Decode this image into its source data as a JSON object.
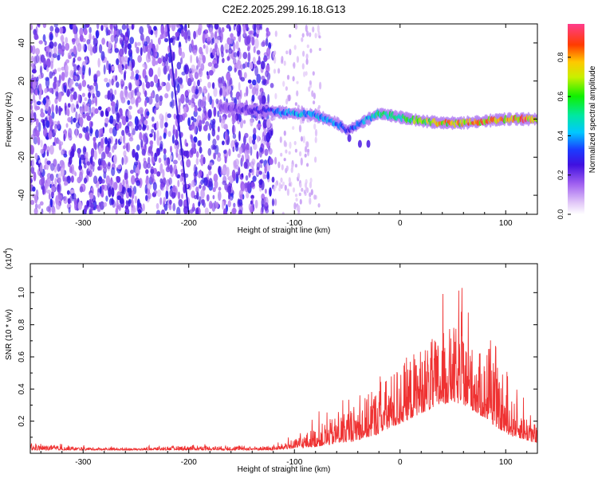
{
  "figure": {
    "title": "C2E2.2025.299.16.18.G13"
  },
  "chart_data": [
    {
      "type": "heatmap",
      "title": "C2E2.2025.299.16.18.G13",
      "xlabel": "Height of straight line (km)",
      "ylabel": "Frequency (Hz)",
      "xlim": [
        -350,
        130
      ],
      "ylim": [
        -50,
        50
      ],
      "xticks": [
        -300,
        -200,
        -100,
        0,
        100
      ],
      "yticks": [
        -40,
        -20,
        0,
        20,
        40
      ],
      "noise_region_x": [
        -350,
        -120
      ],
      "sparse_region_x": [
        -120,
        -75
      ],
      "streak_line": [
        [
          -220,
          50
        ],
        [
          -212,
          10
        ],
        [
          -200,
          -50
        ]
      ],
      "ridge": {
        "x": [
          -170,
          -140,
          -120,
          -100,
          -80,
          -60,
          -50,
          -40,
          -30,
          -20,
          0,
          20,
          40,
          60,
          80,
          100,
          130
        ],
        "freq": [
          6,
          5,
          4,
          3,
          2,
          -2,
          -6,
          -3,
          0,
          3,
          1,
          -1,
          -2,
          -2,
          -1,
          0,
          0
        ],
        "amplitude": [
          0.2,
          0.25,
          0.35,
          0.45,
          0.45,
          0.4,
          0.3,
          0.4,
          0.45,
          0.55,
          0.6,
          0.7,
          0.8,
          0.85,
          0.85,
          0.85,
          0.9
        ]
      },
      "colorbar": {
        "label": "Normalized spectral amplitude",
        "range": [
          0,
          0.97
        ],
        "ticks": [
          "0.0",
          "0.2",
          "0.4",
          "0.6",
          "0.8"
        ]
      }
    },
    {
      "type": "line",
      "xlabel": "Height of straight line (km)",
      "ylabel": "SNR (10 * v/v)",
      "yscale_label": "(x10",
      "yscale_exp": "4",
      "xlim": [
        -350,
        130
      ],
      "ylim": [
        0,
        1.18
      ],
      "xticks": [
        -300,
        -200,
        -100,
        0,
        100
      ],
      "yticks": [
        "0.2",
        "0.4",
        "0.6",
        "0.8",
        "1.0"
      ],
      "series": [
        {
          "name": "SNR",
          "color": "#ef3232",
          "envelope_x": [
            -350,
            -300,
            -250,
            -200,
            -150,
            -120,
            -100,
            -80,
            -60,
            -40,
            -20,
            0,
            20,
            40,
            50,
            60,
            80,
            100,
            120,
            130
          ],
          "envelope_low": [
            0.02,
            0.02,
            0.02,
            0.02,
            0.02,
            0.02,
            0.03,
            0.04,
            0.06,
            0.08,
            0.12,
            0.18,
            0.25,
            0.3,
            0.32,
            0.3,
            0.22,
            0.12,
            0.08,
            0.06
          ],
          "envelope_high": [
            0.08,
            0.05,
            0.04,
            0.07,
            0.06,
            0.06,
            0.12,
            0.25,
            0.35,
            0.48,
            0.62,
            0.82,
            0.95,
            1.05,
            1.12,
            1.02,
            0.85,
            0.55,
            0.35,
            0.25
          ]
        }
      ]
    }
  ]
}
